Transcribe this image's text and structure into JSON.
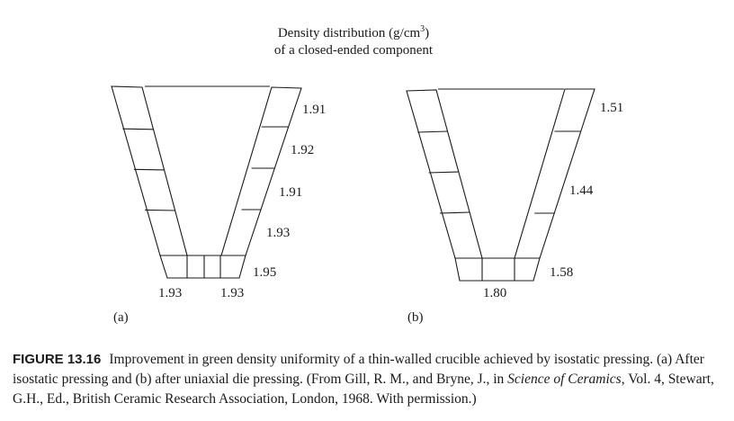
{
  "title": {
    "line1": "Density distribution (g/cm",
    "superscript": "3",
    "line1_end": ")",
    "line2": "of a closed-ended component"
  },
  "panel_a": {
    "label": "(a)",
    "values": {
      "side_1": "1.91",
      "side_2": "1.92",
      "side_3": "1.91",
      "side_4": "1.93",
      "corner": "1.95",
      "bottom_left": "1.93",
      "bottom_right": "1.93"
    }
  },
  "panel_b": {
    "label": "(b)",
    "values": {
      "top": "1.51",
      "middle": "1.44",
      "corner": "1.58",
      "bottom": "1.80"
    }
  },
  "caption": {
    "figure_label": "FIGURE 13.16",
    "text_part1": "Improvement in green density uniformity of a thin-walled crucible achieved by isostatic pressing. (a) After isostatic pressing and (b) after uniaxial die pressing. (From Gill, R. M., and Bryne, J., in ",
    "journal": "Science of Ceramics",
    "text_part2": ", Vol. 4, Stewart, G.H., Ed., British Ceramic Research Association, London, 1968. With permission.)"
  }
}
